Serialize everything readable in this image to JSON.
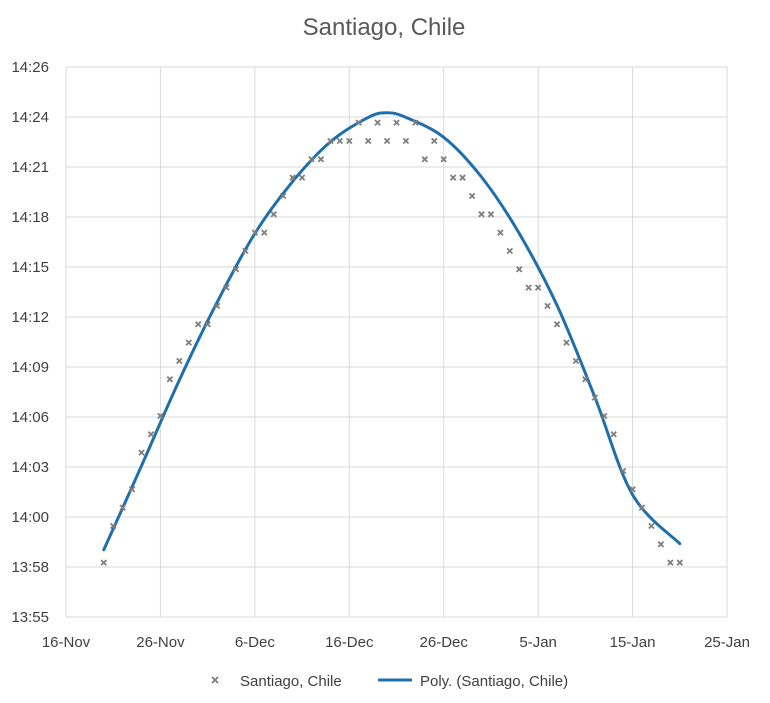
{
  "chart_data": {
    "type": "scatter",
    "title": "Santiago, Chile",
    "xlabel": "",
    "ylabel": "",
    "x_ticks": [
      "16-Nov",
      "26-Nov",
      "6-Dec",
      "16-Dec",
      "26-Dec",
      "5-Jan",
      "15-Jan",
      "25-Jan"
    ],
    "y_ticks": [
      "13:55",
      "13:58",
      "14:00",
      "14:03",
      "14:06",
      "14:09",
      "14:12",
      "14:15",
      "14:18",
      "14:21",
      "14:24",
      "14:26"
    ],
    "xlim": [
      "2020-11-16",
      "2021-01-25"
    ],
    "ylim": [
      "13:55:00",
      "14:25:00"
    ],
    "grid": true,
    "legend": "bottom",
    "colors": {
      "markers": "#7f7f7f",
      "trendline": "#1f6fad",
      "grid": "#d9d9d9"
    },
    "series": [
      {
        "name": "Santiago, Chile",
        "marker": "x",
        "x": [
          "2020-11-20",
          "2020-11-21",
          "2020-11-22",
          "2020-11-23",
          "2020-11-24",
          "2020-11-25",
          "2020-11-26",
          "2020-11-27",
          "2020-11-28",
          "2020-11-29",
          "2020-11-30",
          "2020-12-01",
          "2020-12-02",
          "2020-12-03",
          "2020-12-04",
          "2020-12-05",
          "2020-12-06",
          "2020-12-07",
          "2020-12-08",
          "2020-12-09",
          "2020-12-10",
          "2020-12-11",
          "2020-12-12",
          "2020-12-13",
          "2020-12-14",
          "2020-12-15",
          "2020-12-16",
          "2020-12-17",
          "2020-12-18",
          "2020-12-19",
          "2020-12-20",
          "2020-12-21",
          "2020-12-22",
          "2020-12-23",
          "2020-12-24",
          "2020-12-25",
          "2020-12-26",
          "2020-12-27",
          "2020-12-28",
          "2020-12-29",
          "2020-12-30",
          "2020-12-31",
          "2021-01-01",
          "2021-01-02",
          "2021-01-03",
          "2021-01-04",
          "2021-01-05",
          "2021-01-06",
          "2021-01-07",
          "2021-01-08",
          "2021-01-09",
          "2021-01-10",
          "2021-01-11",
          "2021-01-12",
          "2021-01-13",
          "2021-01-14",
          "2021-01-15",
          "2021-01-16",
          "2021-01-17",
          "2021-01-18",
          "2021-01-19",
          "2021-01-20"
        ],
        "y": [
          "13:57:58",
          "13:59:58",
          "14:00:58",
          "14:01:58",
          "14:03:58",
          "14:04:58",
          "14:05:58",
          "14:07:58",
          "14:08:58",
          "14:09:58",
          "14:10:58",
          "14:10:58",
          "14:11:58",
          "14:12:58",
          "14:13:58",
          "14:14:58",
          "14:15:58",
          "14:15:58",
          "14:16:58",
          "14:17:58",
          "14:18:58",
          "14:18:58",
          "14:19:58",
          "14:19:58",
          "14:20:58",
          "14:20:58",
          "14:20:58",
          "14:21:58",
          "14:20:58",
          "14:21:58",
          "14:20:58",
          "14:21:58",
          "14:20:58",
          "14:21:58",
          "14:19:58",
          "14:20:58",
          "14:19:58",
          "14:18:58",
          "14:18:58",
          "14:17:58",
          "14:16:58",
          "14:16:58",
          "14:15:58",
          "14:14:58",
          "14:13:58",
          "14:12:58",
          "14:12:58",
          "14:11:58",
          "14:10:58",
          "14:09:58",
          "14:08:58",
          "14:07:58",
          "14:06:58",
          "14:05:58",
          "14:04:58",
          "14:02:58",
          "14:01:58",
          "14:00:58",
          "13:59:58",
          "13:58:58",
          "13:57:58",
          "13:57:58"
        ]
      },
      {
        "name": "Poly. (Santiago, Chile)",
        "type": "line",
        "x": [
          "2020-11-20",
          "2020-11-24",
          "2020-11-28",
          "2020-12-02",
          "2020-12-06",
          "2020-12-10",
          "2020-12-14",
          "2020-12-18",
          "2020-12-20",
          "2020-12-22",
          "2020-12-26",
          "2020-12-30",
          "2021-01-03",
          "2021-01-07",
          "2021-01-11",
          "2021-01-15",
          "2021-01-20"
        ],
        "y": [
          "13:58:40",
          "14:03:15",
          "14:07:55",
          "14:12:10",
          "14:15:55",
          "14:18:45",
          "14:20:55",
          "14:22:15",
          "14:22:30",
          "14:22:15",
          "14:21:10",
          "14:19:00",
          "14:15:55",
          "14:12:00",
          "14:07:00",
          "14:01:40",
          "13:59:00"
        ]
      }
    ]
  }
}
